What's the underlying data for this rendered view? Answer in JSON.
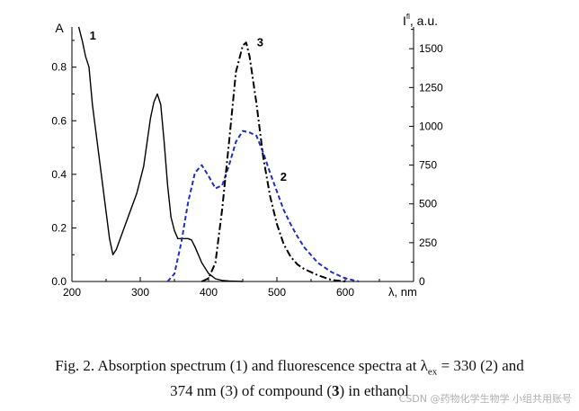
{
  "chart_data": {
    "type": "line",
    "xlabel": "λ, nm",
    "y_left_label": "A",
    "y_right_label": "I",
    "y_right_label_sup": "fl",
    "y_right_label_suffix": ", a.u.",
    "xlim": [
      200,
      700
    ],
    "ylim_left": [
      0,
      0.95
    ],
    "ylim_right": [
      0,
      1640
    ],
    "x_ticks": [
      200,
      300,
      400,
      500,
      600
    ],
    "y_left_ticks": [
      "0.0",
      "0.2",
      "0.4",
      "0.6",
      "0.8"
    ],
    "y_right_ticks": [
      "0",
      "250",
      "500",
      "750",
      "1000",
      "1250",
      "1500"
    ],
    "grid": false,
    "series": [
      {
        "name": "1",
        "axis": "left",
        "style": "solid",
        "color": "#000000",
        "x": [
          210,
          215,
          220,
          225,
          230,
          240,
          250,
          255,
          260,
          265,
          275,
          285,
          295,
          305,
          315,
          320,
          325,
          330,
          335,
          340,
          345,
          350,
          355,
          360,
          365,
          370,
          375,
          380,
          385,
          390,
          400,
          410,
          420,
          430,
          440,
          450
        ],
        "y": [
          0.95,
          0.9,
          0.84,
          0.8,
          0.66,
          0.46,
          0.26,
          0.16,
          0.1,
          0.12,
          0.19,
          0.26,
          0.33,
          0.43,
          0.61,
          0.67,
          0.7,
          0.66,
          0.52,
          0.36,
          0.24,
          0.19,
          0.16,
          0.16,
          0.16,
          0.16,
          0.155,
          0.13,
          0.1,
          0.07,
          0.03,
          0.01,
          0.004,
          0.002,
          0.001,
          0.0
        ]
      },
      {
        "name": "2",
        "axis": "right",
        "style": "dash",
        "color": "#1f2fbf",
        "x": [
          340,
          350,
          360,
          370,
          380,
          390,
          400,
          410,
          420,
          430,
          440,
          450,
          460,
          470,
          480,
          490,
          500,
          510,
          520,
          530,
          540,
          560,
          580,
          600,
          620
        ],
        "y": [
          0,
          50,
          250,
          510,
          700,
          750,
          680,
          600,
          620,
          750,
          900,
          970,
          960,
          940,
          830,
          700,
          580,
          460,
          370,
          290,
          220,
          120,
          60,
          20,
          0
        ]
      },
      {
        "name": "3",
        "axis": "right",
        "style": "dashdot",
        "color": "#000000",
        "x": [
          390,
          400,
          410,
          420,
          430,
          440,
          450,
          455,
          460,
          470,
          480,
          490,
          500,
          510,
          520,
          530,
          540,
          550,
          560,
          570,
          580,
          590,
          600
        ],
        "y": [
          0,
          20,
          120,
          470,
          900,
          1350,
          1520,
          1540,
          1450,
          1150,
          800,
          550,
          370,
          240,
          160,
          110,
          80,
          60,
          40,
          25,
          10,
          5,
          0
        ]
      }
    ]
  },
  "caption": {
    "line1_prefix": "Fig. 2. Absorption spectrum (1) and fluorescence spectra at λ",
    "line1_sub": "ex",
    "line1_suffix": " = 330 (2) and",
    "line2_prefix": "374 nm (3) of compound (",
    "line2_bold": "3",
    "line2_suffix": ") in ethanol"
  },
  "watermark": "CSDN @药物化学生物学 小组共用账号"
}
